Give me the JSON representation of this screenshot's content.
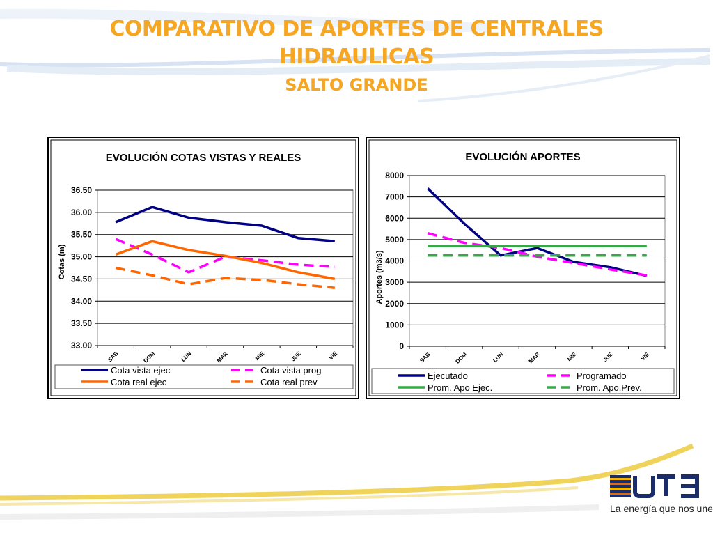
{
  "slide": {
    "title_line1": "COMPARATIVO DE APORTES DE CENTRALES",
    "title_line2": "HIDRAULICAS",
    "subtitle": "SALTO GRANDE"
  },
  "brand": {
    "logo_text": "UTE",
    "tagline": "La energía que nos une"
  },
  "colors": {
    "title": "#F5A623",
    "navy": "#000080",
    "magenta": "#FF00FF",
    "orange": "#FF6600",
    "green": "#33AA44"
  },
  "chart_data": [
    {
      "type": "line",
      "title": "EVOLUCIÓN  COTAS VISTAS Y REALES",
      "ylabel": "Cotas (m)",
      "xlabel": "",
      "categories": [
        "SAB",
        "DOM",
        "LUN",
        "MAR",
        "MIE",
        "JUE",
        "VIE"
      ],
      "y_ticks": [
        "36.50",
        "36.00",
        "35.50",
        "35.00",
        "34.50",
        "34.00",
        "33.50",
        "33.00"
      ],
      "ylim": [
        33.0,
        36.5
      ],
      "grid": true,
      "legend_position": "bottom",
      "series": [
        {
          "name": "Cota vista ejec",
          "color": "#000080",
          "dash": "solid",
          "values": [
            35.78,
            36.12,
            35.88,
            35.78,
            35.7,
            35.42,
            35.35
          ]
        },
        {
          "name": "Cota vista prog",
          "color": "#FF00FF",
          "dash": "dashed",
          "values": [
            35.4,
            35.05,
            34.65,
            35.0,
            34.92,
            34.82,
            34.77
          ]
        },
        {
          "name": "Cota real ejec",
          "color": "#FF6600",
          "dash": "solid",
          "values": [
            35.05,
            35.35,
            35.15,
            35.02,
            34.86,
            34.65,
            34.5
          ]
        },
        {
          "name": "Cota real prev",
          "color": "#FF6600",
          "dash": "dashed",
          "values": [
            34.75,
            34.58,
            34.38,
            34.52,
            34.48,
            34.38,
            34.3
          ]
        }
      ]
    },
    {
      "type": "line",
      "title": "EVOLUCIÓN  APORTES",
      "ylabel": "Aportes (m3/s)",
      "xlabel": "",
      "categories": [
        "SAB",
        "DOM",
        "LUN",
        "MAR",
        "MIE",
        "JUE",
        "VIE"
      ],
      "y_ticks": [
        "8000",
        "7000",
        "6000",
        "5000",
        "4000",
        "3000",
        "2000",
        "1000",
        "0"
      ],
      "ylim": [
        0,
        8000
      ],
      "grid": true,
      "legend_position": "bottom",
      "series": [
        {
          "name": "Ejecutado",
          "color": "#000080",
          "dash": "solid",
          "values": [
            7400,
            5750,
            4250,
            4600,
            3950,
            3700,
            3300
          ]
        },
        {
          "name": "Programado",
          "color": "#FF00FF",
          "dash": "dashed",
          "values": [
            5300,
            4850,
            4600,
            4200,
            3900,
            3600,
            3320
          ]
        },
        {
          "name": "Prom. Apo Ejec.",
          "color": "#33AA44",
          "dash": "solid",
          "values": [
            4700,
            4700,
            4700,
            4700,
            4700,
            4700,
            4700
          ]
        },
        {
          "name": "Prom. Apo.Prev.",
          "color": "#33AA44",
          "dash": "dashed",
          "values": [
            4250,
            4250,
            4250,
            4250,
            4250,
            4250,
            4250
          ]
        }
      ]
    }
  ]
}
